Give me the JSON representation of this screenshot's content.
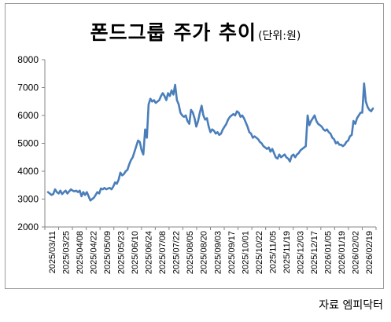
{
  "chart_data": {
    "type": "line",
    "title": "폰드그룹 주가 추이",
    "unit_label": "(단위:원)",
    "source": "자료 엠피닥터",
    "ylim": [
      2000,
      8000
    ],
    "yticks": [
      2000,
      3000,
      4000,
      5000,
      6000,
      7000,
      8000
    ],
    "grid": false,
    "legend": "none",
    "xticks": [
      "2025/03/11",
      "2025/03/25",
      "2025/04/08",
      "2025/04/22",
      "2025/05/09",
      "2025/05/23",
      "2025/06/10",
      "2025/06/24",
      "2025/07/08",
      "2025/07/22",
      "2025/08/05",
      "2025/08/20",
      "2025/09/03",
      "2025/09/17",
      "2025/10/01",
      "2025/10/22",
      "2025/11/05",
      "2025/11/19",
      "2025/12/03",
      "2025/12/17",
      "2026/01/05",
      "2026/01/19",
      "2026/02/02",
      "2026/02/19"
    ],
    "color": "#4a7ebb",
    "series": [
      {
        "values": [
          3250,
          3200,
          3150,
          3180,
          3350,
          3250,
          3200,
          3300,
          3180,
          3250,
          3300,
          3200,
          3280,
          3350,
          3300,
          3280,
          3300,
          3250,
          3300,
          3100,
          3250,
          3150,
          3250,
          3100,
          2950,
          3000,
          3050,
          3150,
          3250,
          3200,
          3380,
          3350,
          3400,
          3350,
          3380,
          3400,
          3350,
          3450,
          3600,
          3550,
          3700,
          3950,
          3850,
          3900,
          4000,
          4050,
          4250,
          4400,
          4500,
          4700,
          4900,
          5100,
          5050,
          4750,
          4600,
          5500,
          5200,
          6400,
          6600,
          6500,
          6550,
          6450,
          6500,
          6550,
          6700,
          6800,
          6700,
          6550,
          6800,
          6700,
          6900,
          6750,
          7100,
          6550,
          6400,
          6100,
          6000,
          5950,
          6000,
          5800,
          5700,
          6200,
          6100,
          5900,
          5600,
          5800,
          6100,
          6350,
          6000,
          5850,
          5900,
          5600,
          5400,
          5500,
          5450,
          5350,
          5400,
          5300,
          5350,
          5500,
          5600,
          5700,
          5850,
          5950,
          6000,
          6050,
          6000,
          6150,
          6100,
          5950,
          6000,
          5900,
          5750,
          5600,
          5400,
          5350,
          5200,
          5250,
          5200,
          5150,
          5050,
          5000,
          4900,
          4850,
          4800,
          4850,
          4700,
          4800,
          4650,
          4500,
          4450,
          4600,
          4500,
          4550,
          4600,
          4500,
          4450,
          4350,
          4550,
          4600,
          4500,
          4600,
          4650,
          4750,
          4800,
          4850,
          4900,
          6000,
          5650,
          5800,
          5900,
          6000,
          5800,
          5700,
          5650,
          5600,
          5500,
          5450,
          5500,
          5400,
          5350,
          5200,
          5150,
          5000,
          5050,
          4950,
          4950,
          4900,
          4950,
          5050,
          5100,
          5250,
          5300,
          5800,
          5700,
          5900,
          6000,
          6100,
          6100,
          7150,
          6500,
          6300,
          6200,
          6150,
          6250
        ]
      }
    ]
  }
}
